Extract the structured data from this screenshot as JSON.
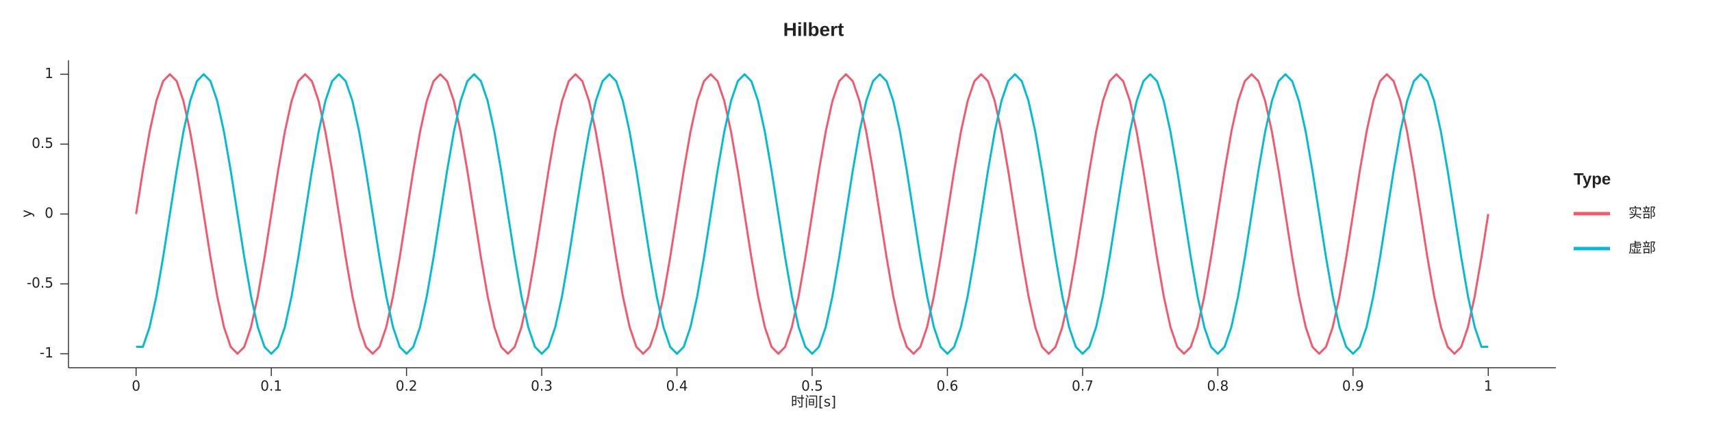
{
  "chart_data": {
    "type": "line",
    "title": "Hilbert",
    "xlabel": "时间[s]",
    "ylabel": "y",
    "legend_title": "Type",
    "legend_position": "right",
    "xlim": [
      -0.05,
      1.05
    ],
    "ylim": [
      -1.1,
      1.1
    ],
    "xticks": [
      0,
      0.1,
      0.2,
      0.3,
      0.4,
      0.5,
      0.6,
      0.7,
      0.8,
      0.9,
      1
    ],
    "yticks": [
      -1,
      -0.5,
      0,
      0.5,
      1
    ],
    "grid": false,
    "x": [
      0,
      0.005,
      0.01,
      0.015,
      0.02,
      0.025,
      0.03,
      0.035,
      0.04,
      0.045,
      0.05,
      0.055,
      0.06,
      0.065,
      0.07,
      0.075,
      0.08,
      0.085,
      0.09,
      0.095,
      0.1,
      0.105,
      0.11,
      0.115,
      0.12,
      0.125,
      0.13,
      0.135,
      0.14,
      0.145,
      0.15,
      0.155,
      0.16,
      0.165,
      0.17,
      0.175,
      0.18,
      0.185,
      0.19,
      0.195,
      0.2,
      0.205,
      0.21,
      0.215,
      0.22,
      0.225,
      0.23,
      0.235,
      0.24,
      0.245,
      0.25,
      0.255,
      0.26,
      0.265,
      0.27,
      0.275,
      0.28,
      0.285,
      0.29,
      0.295,
      0.3,
      0.305,
      0.31,
      0.315,
      0.32,
      0.325,
      0.33,
      0.335,
      0.34,
      0.345,
      0.35,
      0.355,
      0.36,
      0.365,
      0.37,
      0.375,
      0.38,
      0.385,
      0.39,
      0.395,
      0.4,
      0.405,
      0.41,
      0.415,
      0.42,
      0.425,
      0.43,
      0.435,
      0.44,
      0.445,
      0.45,
      0.455,
      0.46,
      0.465,
      0.47,
      0.475,
      0.48,
      0.485,
      0.49,
      0.495,
      0.5,
      0.505,
      0.51,
      0.515,
      0.52,
      0.525,
      0.53,
      0.535,
      0.54,
      0.545,
      0.55,
      0.555,
      0.56,
      0.565,
      0.57,
      0.575,
      0.58,
      0.585,
      0.59,
      0.595,
      0.6,
      0.605,
      0.61,
      0.615,
      0.62,
      0.625,
      0.63,
      0.635,
      0.64,
      0.645,
      0.65,
      0.655,
      0.66,
      0.665,
      0.67,
      0.675,
      0.68,
      0.685,
      0.69,
      0.695,
      0.7,
      0.705,
      0.71,
      0.715,
      0.72,
      0.725,
      0.73,
      0.735,
      0.74,
      0.745,
      0.75,
      0.755,
      0.76,
      0.765,
      0.77,
      0.775,
      0.78,
      0.785,
      0.79,
      0.795,
      0.8,
      0.805,
      0.81,
      0.815,
      0.82,
      0.825,
      0.83,
      0.835,
      0.84,
      0.845,
      0.85,
      0.855,
      0.86,
      0.865,
      0.87,
      0.875,
      0.88,
      0.885,
      0.89,
      0.895,
      0.9,
      0.905,
      0.91,
      0.915,
      0.92,
      0.925,
      0.93,
      0.935,
      0.94,
      0.945,
      0.95,
      0.955,
      0.96,
      0.965,
      0.97,
      0.975,
      0.98,
      0.985,
      0.99,
      0.995,
      1
    ],
    "series": [
      {
        "name": "实部",
        "color": "#f5576c",
        "values": [
          0,
          0.309,
          0.588,
          0.809,
          0.951,
          1,
          0.951,
          0.809,
          0.588,
          0.309,
          0,
          -0.309,
          -0.588,
          -0.809,
          -0.951,
          -1,
          -0.951,
          -0.809,
          -0.588,
          -0.309,
          0,
          0.309,
          0.588,
          0.809,
          0.951,
          1,
          0.951,
          0.809,
          0.588,
          0.309,
          0,
          -0.309,
          -0.588,
          -0.809,
          -0.951,
          -1,
          -0.951,
          -0.809,
          -0.588,
          -0.309,
          0,
          0.309,
          0.588,
          0.809,
          0.951,
          1,
          0.951,
          0.809,
          0.588,
          0.309,
          0,
          -0.309,
          -0.588,
          -0.809,
          -0.951,
          -1,
          -0.951,
          -0.809,
          -0.588,
          -0.309,
          0,
          0.309,
          0.588,
          0.809,
          0.951,
          1,
          0.951,
          0.809,
          0.588,
          0.309,
          0,
          -0.309,
          -0.588,
          -0.809,
          -0.951,
          -1,
          -0.951,
          -0.809,
          -0.588,
          -0.309,
          0,
          0.309,
          0.588,
          0.809,
          0.951,
          1,
          0.951,
          0.809,
          0.588,
          0.309,
          0,
          -0.309,
          -0.588,
          -0.809,
          -0.951,
          -1,
          -0.951,
          -0.809,
          -0.588,
          -0.309,
          0,
          0.309,
          0.588,
          0.809,
          0.951,
          1,
          0.951,
          0.809,
          0.588,
          0.309,
          0,
          -0.309,
          -0.588,
          -0.809,
          -0.951,
          -1,
          -0.951,
          -0.809,
          -0.588,
          -0.309,
          0,
          0.309,
          0.588,
          0.809,
          0.951,
          1,
          0.951,
          0.809,
          0.588,
          0.309,
          0,
          -0.309,
          -0.588,
          -0.809,
          -0.951,
          -1,
          -0.951,
          -0.809,
          -0.588,
          -0.309,
          0,
          0.309,
          0.588,
          0.809,
          0.951,
          1,
          0.951,
          0.809,
          0.588,
          0.309,
          0,
          -0.309,
          -0.588,
          -0.809,
          -0.951,
          -1,
          -0.951,
          -0.809,
          -0.588,
          -0.309,
          0,
          0.309,
          0.588,
          0.809,
          0.951,
          1,
          0.951,
          0.809,
          0.588,
          0.309,
          0,
          -0.309,
          -0.588,
          -0.809,
          -0.951,
          -1,
          -0.951,
          -0.809,
          -0.588,
          -0.309,
          0,
          0.309,
          0.588,
          0.809,
          0.951,
          1,
          0.951,
          0.809,
          0.588,
          0.309,
          0,
          -0.309,
          -0.588,
          -0.809,
          -0.951,
          -1,
          -0.951,
          -0.809,
          -0.588,
          -0.309,
          0
        ]
      },
      {
        "name": "虚部",
        "color": "#00bcd4",
        "values": [
          -0.95,
          -0.951,
          -0.809,
          -0.588,
          -0.309,
          0,
          0.309,
          0.588,
          0.809,
          0.951,
          1,
          0.951,
          0.809,
          0.588,
          0.309,
          0,
          -0.309,
          -0.588,
          -0.809,
          -0.951,
          -1,
          -0.951,
          -0.809,
          -0.588,
          -0.309,
          0,
          0.309,
          0.588,
          0.809,
          0.951,
          1,
          0.951,
          0.809,
          0.588,
          0.309,
          0,
          -0.309,
          -0.588,
          -0.809,
          -0.951,
          -1,
          -0.951,
          -0.809,
          -0.588,
          -0.309,
          0,
          0.309,
          0.588,
          0.809,
          0.951,
          1,
          0.951,
          0.809,
          0.588,
          0.309,
          0,
          -0.309,
          -0.588,
          -0.809,
          -0.951,
          -1,
          -0.951,
          -0.809,
          -0.588,
          -0.309,
          0,
          0.309,
          0.588,
          0.809,
          0.951,
          1,
          0.951,
          0.809,
          0.588,
          0.309,
          0,
          -0.309,
          -0.588,
          -0.809,
          -0.951,
          -1,
          -0.951,
          -0.809,
          -0.588,
          -0.309,
          0,
          0.309,
          0.588,
          0.809,
          0.951,
          1,
          0.951,
          0.809,
          0.588,
          0.309,
          0,
          -0.309,
          -0.588,
          -0.809,
          -0.951,
          -1,
          -0.951,
          -0.809,
          -0.588,
          -0.309,
          0,
          0.309,
          0.588,
          0.809,
          0.951,
          1,
          0.951,
          0.809,
          0.588,
          0.309,
          0,
          -0.309,
          -0.588,
          -0.809,
          -0.951,
          -1,
          -0.951,
          -0.809,
          -0.588,
          -0.309,
          0,
          0.309,
          0.588,
          0.809,
          0.951,
          1,
          0.951,
          0.809,
          0.588,
          0.309,
          0,
          -0.309,
          -0.588,
          -0.809,
          -0.951,
          -1,
          -0.951,
          -0.809,
          -0.588,
          -0.309,
          0,
          0.309,
          0.588,
          0.809,
          0.951,
          1,
          0.951,
          0.809,
          0.588,
          0.309,
          0,
          -0.309,
          -0.588,
          -0.809,
          -0.951,
          -1,
          -0.951,
          -0.809,
          -0.588,
          -0.309,
          0,
          0.309,
          0.588,
          0.809,
          0.951,
          1,
          0.951,
          0.809,
          0.588,
          0.309,
          0,
          -0.309,
          -0.588,
          -0.809,
          -0.951,
          -1,
          -0.951,
          -0.809,
          -0.588,
          -0.309,
          0,
          0.309,
          0.588,
          0.809,
          0.951,
          1,
          0.951,
          0.809,
          0.588,
          0.309,
          0,
          -0.309,
          -0.588,
          -0.809,
          -0.951,
          -0.95
        ]
      }
    ]
  }
}
